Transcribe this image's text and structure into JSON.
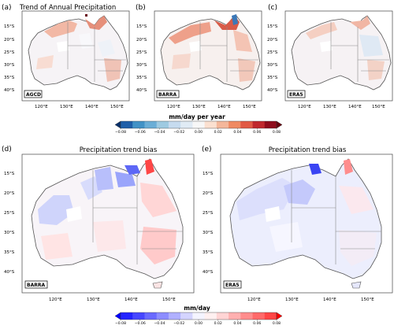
{
  "panels": [
    {
      "letter": "(a)",
      "title": "Trend of Annual Precipitation",
      "dataset": "AGCD"
    },
    {
      "letter": "(b)",
      "title": "",
      "dataset": "BARRA"
    },
    {
      "letter": "(c)",
      "title": "",
      "dataset": "ERA5"
    },
    {
      "letter": "(d)",
      "title": "Precipitation trend bias",
      "dataset": "BARRA"
    },
    {
      "letter": "(e)",
      "title": "Precipitation trend bias",
      "dataset": "ERA5"
    }
  ],
  "lat_ticks": [
    "15°S",
    "20°S",
    "25°S",
    "30°S",
    "35°S",
    "40°S"
  ],
  "lon_ticks": [
    "120°E",
    "130°E",
    "140°E",
    "150°E"
  ],
  "colorbar_top": {
    "label": "mm/day per year",
    "ticks": [
      "−0.08",
      "−0.06",
      "−0.04",
      "−0.02",
      "0.00",
      "0.02",
      "0.04",
      "0.06",
      "0.08"
    ],
    "colors": [
      "#08306b",
      "#1f5fa8",
      "#4292c6",
      "#6baed6",
      "#9ecae1",
      "#c6dbef",
      "#e0ebf5",
      "#f7f7f7",
      "#fbe0d0",
      "#f4b79a",
      "#ef8a62",
      "#e15a45",
      "#c0282d",
      "#8f0c1c",
      "#67000d"
    ]
  },
  "colorbar_bottom": {
    "label": "mm/day",
    "ticks": [
      "−0.08",
      "−0.06",
      "−0.04",
      "−0.02",
      "0.00",
      "0.02",
      "0.04",
      "0.06",
      "0.08"
    ],
    "colors": [
      "#0000ff",
      "#2323ff",
      "#4646ff",
      "#6a6aff",
      "#8d8dff",
      "#b0b0ff",
      "#d4d4ff",
      "#f4f4ff",
      "#fff0f0",
      "#ffd4d4",
      "#ffb0b0",
      "#ff8d8d",
      "#ff6a6a",
      "#ff4646",
      "#ff0000"
    ]
  },
  "colors": {
    "land_neutral": "#f2f0f4",
    "coast": "#555555",
    "border": "#8a8a8a"
  }
}
